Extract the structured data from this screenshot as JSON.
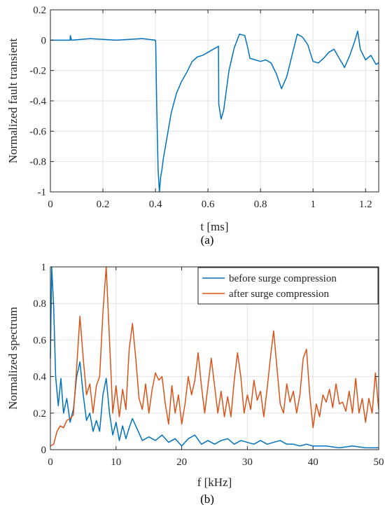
{
  "figure": {
    "panels": [
      {
        "caption": "(a)"
      },
      {
        "caption": "(b)"
      }
    ]
  },
  "chart_data": [
    {
      "type": "line",
      "xlabel": "t [ms]",
      "ylabel": "Normalized fault transient",
      "xlim": [
        0,
        1.25
      ],
      "ylim": [
        -1,
        0.2
      ],
      "xticks": [
        0,
        0.2,
        0.4,
        0.6,
        0.8,
        1,
        1.2
      ],
      "xtick_labels": [
        "0",
        "0.2",
        "0.4",
        "0.6",
        "0.8",
        "1",
        "1.2"
      ],
      "yticks": [
        -1,
        -0.8,
        -0.6,
        -0.4,
        -0.2,
        0,
        0.2
      ],
      "ytick_labels": [
        "-1",
        "-0.8",
        "-0.6",
        "-0.4",
        "-0.2",
        "0",
        "0.2"
      ],
      "grid": true,
      "series": [
        {
          "color": "#0072BD",
          "x": [
            0,
            0.05,
            0.075,
            0.076,
            0.08,
            0.15,
            0.25,
            0.35,
            0.4,
            0.401,
            0.405,
            0.41,
            0.415,
            0.42,
            0.425,
            0.43,
            0.44,
            0.45,
            0.46,
            0.48,
            0.5,
            0.52,
            0.54,
            0.56,
            0.58,
            0.6,
            0.62,
            0.64,
            0.641,
            0.65,
            0.66,
            0.68,
            0.7,
            0.72,
            0.74,
            0.75,
            0.76,
            0.78,
            0.8,
            0.82,
            0.84,
            0.86,
            0.88,
            0.9,
            0.92,
            0.94,
            0.96,
            0.98,
            1.0,
            1.02,
            1.04,
            1.06,
            1.08,
            1.1,
            1.12,
            1.14,
            1.16,
            1.17,
            1.18,
            1.2,
            1.22,
            1.24,
            1.25
          ],
          "y": [
            0.0,
            0.0,
            0.0,
            0.03,
            0.0,
            0.01,
            0.0,
            0.01,
            0.0,
            -0.02,
            -0.45,
            -0.85,
            -1.0,
            -0.9,
            -0.85,
            -0.78,
            -0.68,
            -0.58,
            -0.48,
            -0.35,
            -0.27,
            -0.21,
            -0.14,
            -0.11,
            -0.1,
            -0.08,
            -0.06,
            -0.04,
            -0.42,
            -0.52,
            -0.46,
            -0.2,
            -0.05,
            0.04,
            0.03,
            -0.04,
            -0.12,
            -0.13,
            -0.14,
            -0.13,
            -0.15,
            -0.22,
            -0.32,
            -0.24,
            -0.1,
            0.04,
            0.02,
            -0.03,
            -0.14,
            -0.15,
            -0.12,
            -0.08,
            -0.06,
            -0.12,
            -0.18,
            -0.1,
            0.0,
            0.06,
            -0.06,
            -0.13,
            -0.1,
            -0.16,
            -0.15
          ]
        }
      ]
    },
    {
      "type": "line",
      "xlabel": "f [kHz]",
      "ylabel": "Normalized spectrum",
      "xlim": [
        0,
        50
      ],
      "ylim": [
        0,
        1
      ],
      "xticks": [
        0,
        10,
        20,
        30,
        40,
        50
      ],
      "xtick_labels": [
        "0",
        "10",
        "20",
        "30",
        "40",
        "50"
      ],
      "yticks": [
        0,
        0.2,
        0.4,
        0.6,
        0.8,
        1
      ],
      "ytick_labels": [
        "0",
        "0.2",
        "0.4",
        "0.6",
        "0.8",
        "1"
      ],
      "grid": true,
      "legend_position": "top-right",
      "series": [
        {
          "name": "before surge compression",
          "color": "#0072BD",
          "x": [
            0,
            0.2,
            0.5,
            0.8,
            1.2,
            1.6,
            2.0,
            2.5,
            3.0,
            3.5,
            4.0,
            4.5,
            5.0,
            5.5,
            6.0,
            6.5,
            7.0,
            7.5,
            8.0,
            8.5,
            9.0,
            9.5,
            10.0,
            10.5,
            11.0,
            11.5,
            12.0,
            12.5,
            13.0,
            14.0,
            15.0,
            16.0,
            17.0,
            18.0,
            19.0,
            20.0,
            21.0,
            22.0,
            23.0,
            24.0,
            25.0,
            26.0,
            27.0,
            28.0,
            29.0,
            30.0,
            31.0,
            32.0,
            33.0,
            34.0,
            35.0,
            36.0,
            37.0,
            38.0,
            39.0,
            40.0,
            42.0,
            44.0,
            46.0,
            48.0,
            50.0
          ],
          "y": [
            0.5,
            1.0,
            0.78,
            0.4,
            0.24,
            0.39,
            0.2,
            0.28,
            0.15,
            0.22,
            0.4,
            0.48,
            0.3,
            0.16,
            0.2,
            0.1,
            0.16,
            0.1,
            0.3,
            0.39,
            0.2,
            0.08,
            0.15,
            0.05,
            0.13,
            0.06,
            0.12,
            0.17,
            0.13,
            0.05,
            0.07,
            0.05,
            0.08,
            0.04,
            0.06,
            0.02,
            0.06,
            0.08,
            0.03,
            0.05,
            0.03,
            0.05,
            0.06,
            0.03,
            0.05,
            0.04,
            0.03,
            0.05,
            0.03,
            0.04,
            0.05,
            0.03,
            0.03,
            0.02,
            0.03,
            0.02,
            0.02,
            0.01,
            0.02,
            0.01,
            0.01
          ]
        },
        {
          "name": "after surge compression",
          "color": "#D95319",
          "x": [
            0,
            0.5,
            1.0,
            1.5,
            2.0,
            2.5,
            3.0,
            3.5,
            4.0,
            4.5,
            5.0,
            5.5,
            6.0,
            6.5,
            7.0,
            7.5,
            8.0,
            8.5,
            9.0,
            9.5,
            10.0,
            10.5,
            11.0,
            11.5,
            12.0,
            12.5,
            13.0,
            13.5,
            14.0,
            14.5,
            15.0,
            15.5,
            16.0,
            16.5,
            17.0,
            17.5,
            18.0,
            18.5,
            19.0,
            19.5,
            20.0,
            20.5,
            21.0,
            21.5,
            22.0,
            22.5,
            23.0,
            23.5,
            24.0,
            24.5,
            25.0,
            25.5,
            26.0,
            26.5,
            27.0,
            27.5,
            28.0,
            28.5,
            29.0,
            29.5,
            30.0,
            30.5,
            31.0,
            31.5,
            32.0,
            32.5,
            33.0,
            33.5,
            34.0,
            34.5,
            35.0,
            35.5,
            36.0,
            36.5,
            37.0,
            37.5,
            38.0,
            38.5,
            39.0,
            39.5,
            40.0,
            40.5,
            41.0,
            41.5,
            42.0,
            42.5,
            43.0,
            43.5,
            44.0,
            44.5,
            45.0,
            45.5,
            46.0,
            46.5,
            47.0,
            47.5,
            48.0,
            48.5,
            49.0,
            49.5,
            50.0
          ],
          "y": [
            0.02,
            0.03,
            0.1,
            0.13,
            0.12,
            0.16,
            0.17,
            0.19,
            0.45,
            0.73,
            0.5,
            0.3,
            0.36,
            0.2,
            0.35,
            0.4,
            0.75,
            1.0,
            0.6,
            0.2,
            0.35,
            0.18,
            0.33,
            0.22,
            0.55,
            0.69,
            0.5,
            0.28,
            0.22,
            0.36,
            0.2,
            0.33,
            0.42,
            0.38,
            0.4,
            0.25,
            0.14,
            0.35,
            0.2,
            0.3,
            0.14,
            0.25,
            0.4,
            0.3,
            0.38,
            0.53,
            0.35,
            0.2,
            0.35,
            0.5,
            0.35,
            0.2,
            0.32,
            0.18,
            0.29,
            0.18,
            0.38,
            0.53,
            0.4,
            0.2,
            0.3,
            0.22,
            0.38,
            0.27,
            0.32,
            0.18,
            0.33,
            0.5,
            0.65,
            0.45,
            0.25,
            0.2,
            0.36,
            0.26,
            0.32,
            0.2,
            0.3,
            0.5,
            0.55,
            0.3,
            0.12,
            0.25,
            0.18,
            0.3,
            0.26,
            0.33,
            0.23,
            0.36,
            0.25,
            0.26,
            0.21,
            0.32,
            0.2,
            0.39,
            0.2,
            0.28,
            0.15,
            0.28,
            0.2,
            0.42,
            0.22
          ]
        }
      ]
    }
  ]
}
